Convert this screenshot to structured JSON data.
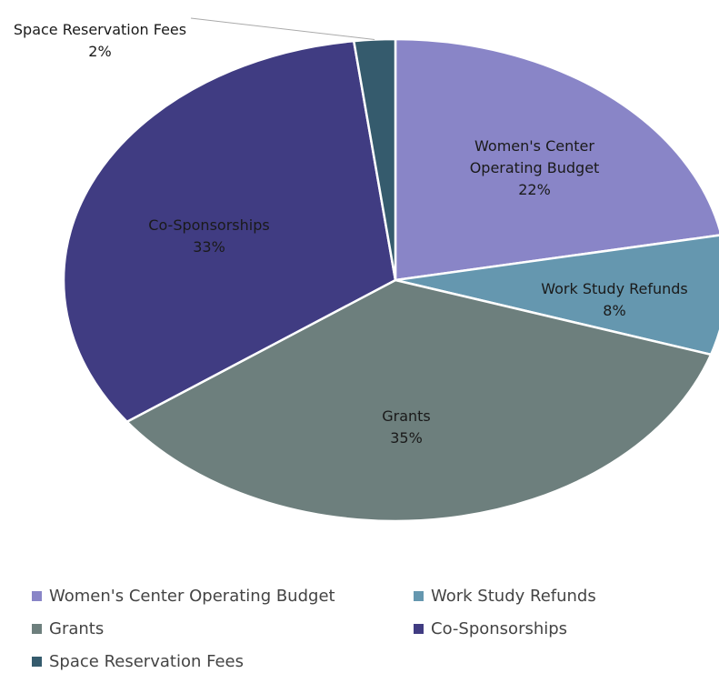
{
  "chart_data": {
    "type": "pie",
    "categories": [
      "Women's Center Operating Budget",
      "Work Study Refunds",
      "Grants",
      "Co-Sponsorships",
      "Space Reservation Fees"
    ],
    "values": [
      22,
      8,
      35,
      33,
      2
    ],
    "value_labels": [
      "22%",
      "8%",
      "35%",
      "33%",
      "2%"
    ],
    "colors": [
      "#8985c7",
      "#6597af",
      "#6d7f7d",
      "#403c82",
      "#355b6d"
    ],
    "legend": "bottom"
  }
}
